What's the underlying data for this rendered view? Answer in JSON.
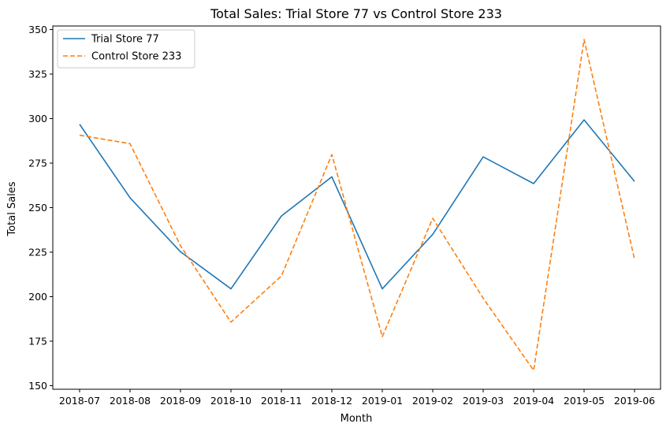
{
  "chart_data": {
    "type": "line",
    "title": "Total Sales: Trial Store 77 vs Control Store 233",
    "xlabel": "Month",
    "ylabel": "Total Sales",
    "categories": [
      "2018-07",
      "2018-08",
      "2018-09",
      "2018-10",
      "2018-11",
      "2018-12",
      "2019-01",
      "2019-02",
      "2019-03",
      "2019-04",
      "2019-05",
      "2019-06"
    ],
    "ylim": [
      148,
      352
    ],
    "yticks": [
      150,
      175,
      200,
      225,
      250,
      275,
      300,
      325,
      350
    ],
    "grid": false,
    "legend_position": "top-left",
    "series": [
      {
        "name": "Trial Store 77",
        "color": "#1f77b4",
        "dash": "solid",
        "values": [
          296.8,
          255.5,
          225.2,
          204.4,
          245.3,
          267.3,
          204.4,
          235.0,
          278.5,
          263.5,
          299.3,
          264.7
        ]
      },
      {
        "name": "Control Store 233",
        "color": "#ff7f0e",
        "dash": "dashed",
        "values": [
          290.7,
          285.9,
          228.6,
          185.7,
          211.6,
          279.8,
          177.5,
          244.0,
          199.1,
          158.6,
          344.4,
          221.0
        ]
      }
    ]
  }
}
